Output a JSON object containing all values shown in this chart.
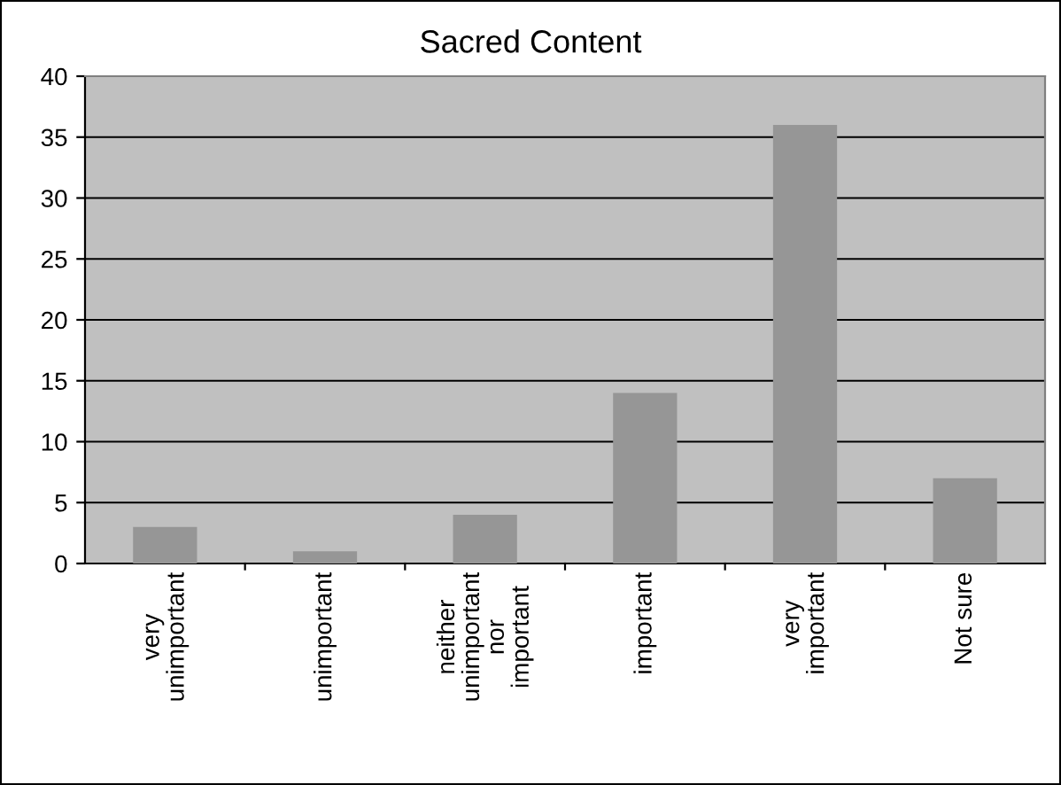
{
  "chart_data": {
    "type": "bar",
    "title": "Sacred Content",
    "categories": [
      "very\nunimportant",
      "unimportant",
      "neither\nunimportant\nnor\nimportant",
      "important",
      "very\nimportant",
      "Not sure"
    ],
    "values": [
      3,
      1,
      4,
      14,
      36,
      7
    ],
    "color": "#969696",
    "ylim": [
      0,
      40
    ],
    "yticks": [
      0,
      5,
      10,
      15,
      20,
      25,
      30,
      35,
      40
    ],
    "grid": "y",
    "legend": false
  }
}
